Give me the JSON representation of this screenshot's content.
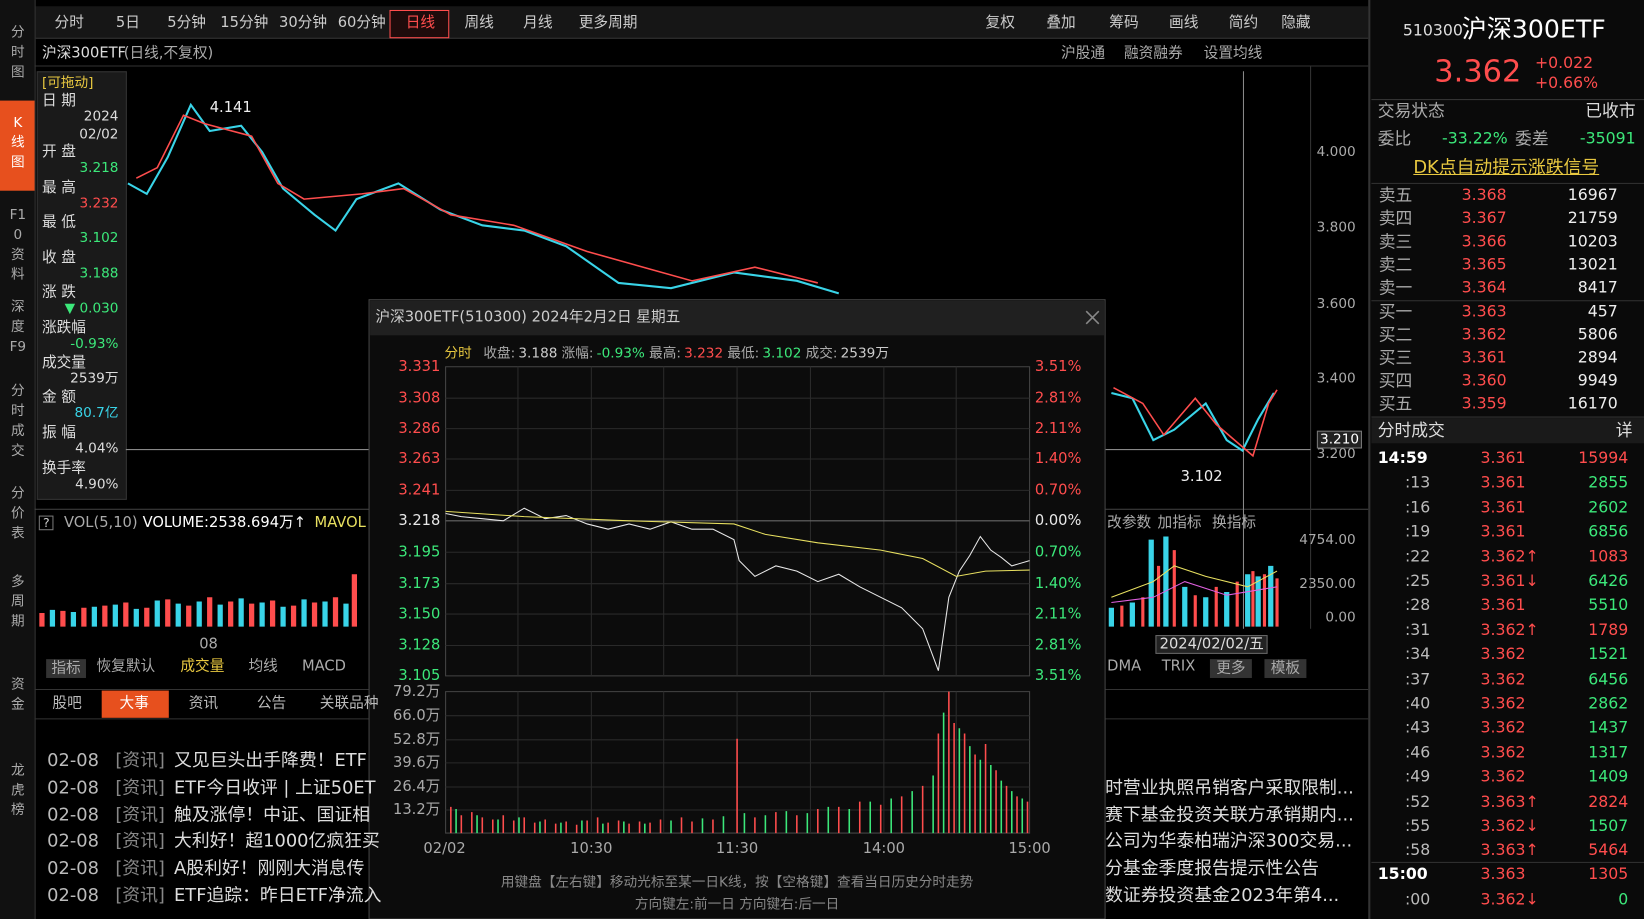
{
  "top_tabs": [
    "分时",
    "5日",
    "5分钟",
    "15分钟",
    "30分钟",
    "60分钟",
    "日线",
    "周线",
    "月线",
    "更多周期"
  ],
  "tools": [
    "复权",
    "叠加",
    "筹码",
    "画线",
    "简约",
    "隐藏"
  ],
  "left_nav": [
    "分时图",
    "K线图",
    "F10资料",
    "深度F9",
    "分时成交",
    "分价表",
    "多周期",
    "资金",
    "龙虎榜"
  ],
  "chart": {
    "title": "沪深300ETF",
    "subtitle": "(日线,不复权)",
    "links": [
      "沪股通",
      "融资融券",
      "设置均线"
    ],
    "price_axis": [
      "4.000",
      "3.800",
      "3.600",
      "3.400",
      "3.200"
    ],
    "current_price": "3.210",
    "high_label": "4.141",
    "low_label": "3.102"
  },
  "info_box": {
    "drag": "[可拖动]",
    "rows": [
      {
        "label": "日 期",
        "value": "2024",
        "value2": "02/02"
      },
      {
        "label": "开 盘",
        "value": "3.218"
      },
      {
        "label": "最 高",
        "value": "3.232"
      },
      {
        "label": "最 低",
        "value": "3.102"
      },
      {
        "label": "收 盘",
        "value": "3.188"
      },
      {
        "label": "涨 跌",
        "value": "▼ 0.030"
      },
      {
        "label": "涨跌幅",
        "value": "-0.93%"
      },
      {
        "label": "成交量",
        "value": "2539万"
      },
      {
        "label": "金 额",
        "value": "80.7亿"
      },
      {
        "label": "振 幅",
        "value": "4.04%"
      },
      {
        "label": "换手率",
        "value": "4.90%"
      }
    ]
  },
  "volume": {
    "help": "?",
    "name": "VOL(5,10)",
    "value": "VOLUME:2538.694万↑",
    "ma": "MAVOL",
    "axis": [
      "4754.00",
      "2350.00",
      "0.00"
    ],
    "date_label": "08",
    "cursor_date": "2024/02/02/五",
    "buttons": [
      "改参数",
      "加指标",
      "换指标"
    ]
  },
  "indicator_tabs": [
    "指标",
    "恢复默认",
    "成交量",
    "均线",
    "MACD"
  ],
  "indicator_tabs_right": [
    "DMA",
    "TRIX",
    "更多",
    "模板"
  ],
  "news_tabs": [
    "股吧",
    "大事",
    "资讯",
    "公告",
    "关联品种"
  ],
  "news": [
    {
      "date": "02-08",
      "tag": "[资讯]",
      "text": "又见巨头出手降费！ETF"
    },
    {
      "date": "02-08",
      "tag": "[资讯]",
      "text": "ETF今日收评 | 上证50ET"
    },
    {
      "date": "02-08",
      "tag": "[资讯]",
      "text": "触及涨停！中证、国证相"
    },
    {
      "date": "02-08",
      "tag": "[资讯]",
      "text": "大利好！超1000亿疯狂买"
    },
    {
      "date": "02-08",
      "tag": "[资讯]",
      "text": "A股利好！刚刚大消息传"
    },
    {
      "date": "02-08",
      "tag": "[资讯]",
      "text": "ETF追踪：昨日ETF净流入"
    }
  ],
  "news_right": [
    "时营业执照吊销客户采取限制...",
    "赛下基金投资关联方承销期内...",
    "公司为华泰柏瑞沪深300交易...",
    "分基金季度报告提示性公告",
    "数证券投资基金2023年第4..."
  ],
  "popup": {
    "title": "沪深300ETF(510300) 2024年2月2日 星期五",
    "header": [
      {
        "label": "分时",
        "value": ""
      },
      {
        "label": "收盘:",
        "value": "3.188"
      },
      {
        "label": "涨幅:",
        "value": "-0.93%"
      },
      {
        "label": "最高:",
        "value": "3.232"
      },
      {
        "label": "最低:",
        "value": "3.102"
      },
      {
        "label": "成交:",
        "value": "2539万"
      }
    ],
    "price_labels": [
      "3.331",
      "3.308",
      "3.286",
      "3.263",
      "3.241",
      "3.218",
      "3.195",
      "3.173",
      "3.150",
      "3.128",
      "3.105"
    ],
    "pct_labels": [
      "3.51%",
      "2.81%",
      "2.11%",
      "1.40%",
      "0.70%",
      "0.00%",
      "0.70%",
      "1.40%",
      "2.11%",
      "2.81%",
      "3.51%"
    ],
    "vol_labels": [
      "79.2万",
      "66.0万",
      "52.8万",
      "39.6万",
      "26.4万",
      "13.2万"
    ],
    "time_labels": [
      "02/02",
      "10:30",
      "11:30",
      "14:00",
      "15:00"
    ],
    "footer": [
      "用键盘【左右键】移动光标至某一日K线，按【空格键】查看当日历史分时走势",
      "方向键左:前一日  方向键右:后一日"
    ]
  },
  "quote": {
    "code": "510300",
    "name": "沪深300ETF",
    "price": "3.362",
    "change": "+0.022",
    "change_pct": "+0.66%",
    "status_label": "交易状态",
    "status": "已收市",
    "ratio_label": "委比",
    "ratio": "-33.22%",
    "diff_label": "委差",
    "diff": "-35091",
    "dk": "DK点自动提示涨跌信号",
    "book": [
      {
        "label": "卖五",
        "price": "3.368",
        "vol": "16967"
      },
      {
        "label": "卖四",
        "price": "3.367",
        "vol": "21759"
      },
      {
        "label": "卖三",
        "price": "3.366",
        "vol": "10203"
      },
      {
        "label": "卖二",
        "price": "3.365",
        "vol": "13021"
      },
      {
        "label": "卖一",
        "price": "3.364",
        "vol": "8417"
      },
      {
        "label": "买一",
        "price": "3.363",
        "vol": "457"
      },
      {
        "label": "买二",
        "price": "3.362",
        "vol": "5806"
      },
      {
        "label": "买三",
        "price": "3.361",
        "vol": "2894"
      },
      {
        "label": "买四",
        "price": "3.360",
        "vol": "9949"
      },
      {
        "label": "买五",
        "price": "3.359",
        "vol": "16170"
      }
    ],
    "trades_title": "分时成交",
    "trades_detail": "详",
    "trades": [
      {
        "time": "14:59",
        "price": "3.361",
        "vol": "15994",
        "color": "#ff4d4d"
      },
      {
        "time": ":13",
        "price": "3.361",
        "vol": "2855",
        "color": "#3ce87a"
      },
      {
        "time": ":16",
        "price": "3.361",
        "vol": "2602",
        "color": "#3ce87a"
      },
      {
        "time": ":19",
        "price": "3.361",
        "vol": "6856",
        "color": "#3ce87a"
      },
      {
        "time": ":22",
        "price": "3.362↑",
        "vol": "1083",
        "color": "#ff4d4d"
      },
      {
        "time": ":25",
        "price": "3.361↓",
        "vol": "6426",
        "color": "#3ce87a"
      },
      {
        "time": ":28",
        "price": "3.361",
        "vol": "5510",
        "color": "#3ce87a"
      },
      {
        "time": ":31",
        "price": "3.362↑",
        "vol": "1789",
        "color": "#ff4d4d"
      },
      {
        "time": ":34",
        "price": "3.362",
        "vol": "1521",
        "color": "#3ce87a"
      },
      {
        "time": ":37",
        "price": "3.362",
        "vol": "6456",
        "color": "#3ce87a"
      },
      {
        "time": ":40",
        "price": "3.362",
        "vol": "2862",
        "color": "#3ce87a"
      },
      {
        "time": ":43",
        "price": "3.362",
        "vol": "1437",
        "color": "#3ce87a"
      },
      {
        "time": ":46",
        "price": "3.362",
        "vol": "1317",
        "color": "#3ce87a"
      },
      {
        "time": ":49",
        "price": "3.362",
        "vol": "1409",
        "color": "#3ce87a"
      },
      {
        "time": ":52",
        "price": "3.363↑",
        "vol": "2824",
        "color": "#ff4d4d"
      },
      {
        "time": ":55",
        "price": "3.362↓",
        "vol": "1507",
        "color": "#3ce87a"
      },
      {
        "time": ":58",
        "price": "3.363↑",
        "vol": "5464",
        "color": "#ff4d4d"
      },
      {
        "time": "15:00",
        "price": "3.363",
        "vol": "1305",
        "color": "#ff4d4d"
      },
      {
        "time": ":00",
        "price": "3.362↓",
        "vol": "0",
        "color": "#3ce87a"
      }
    ]
  }
}
